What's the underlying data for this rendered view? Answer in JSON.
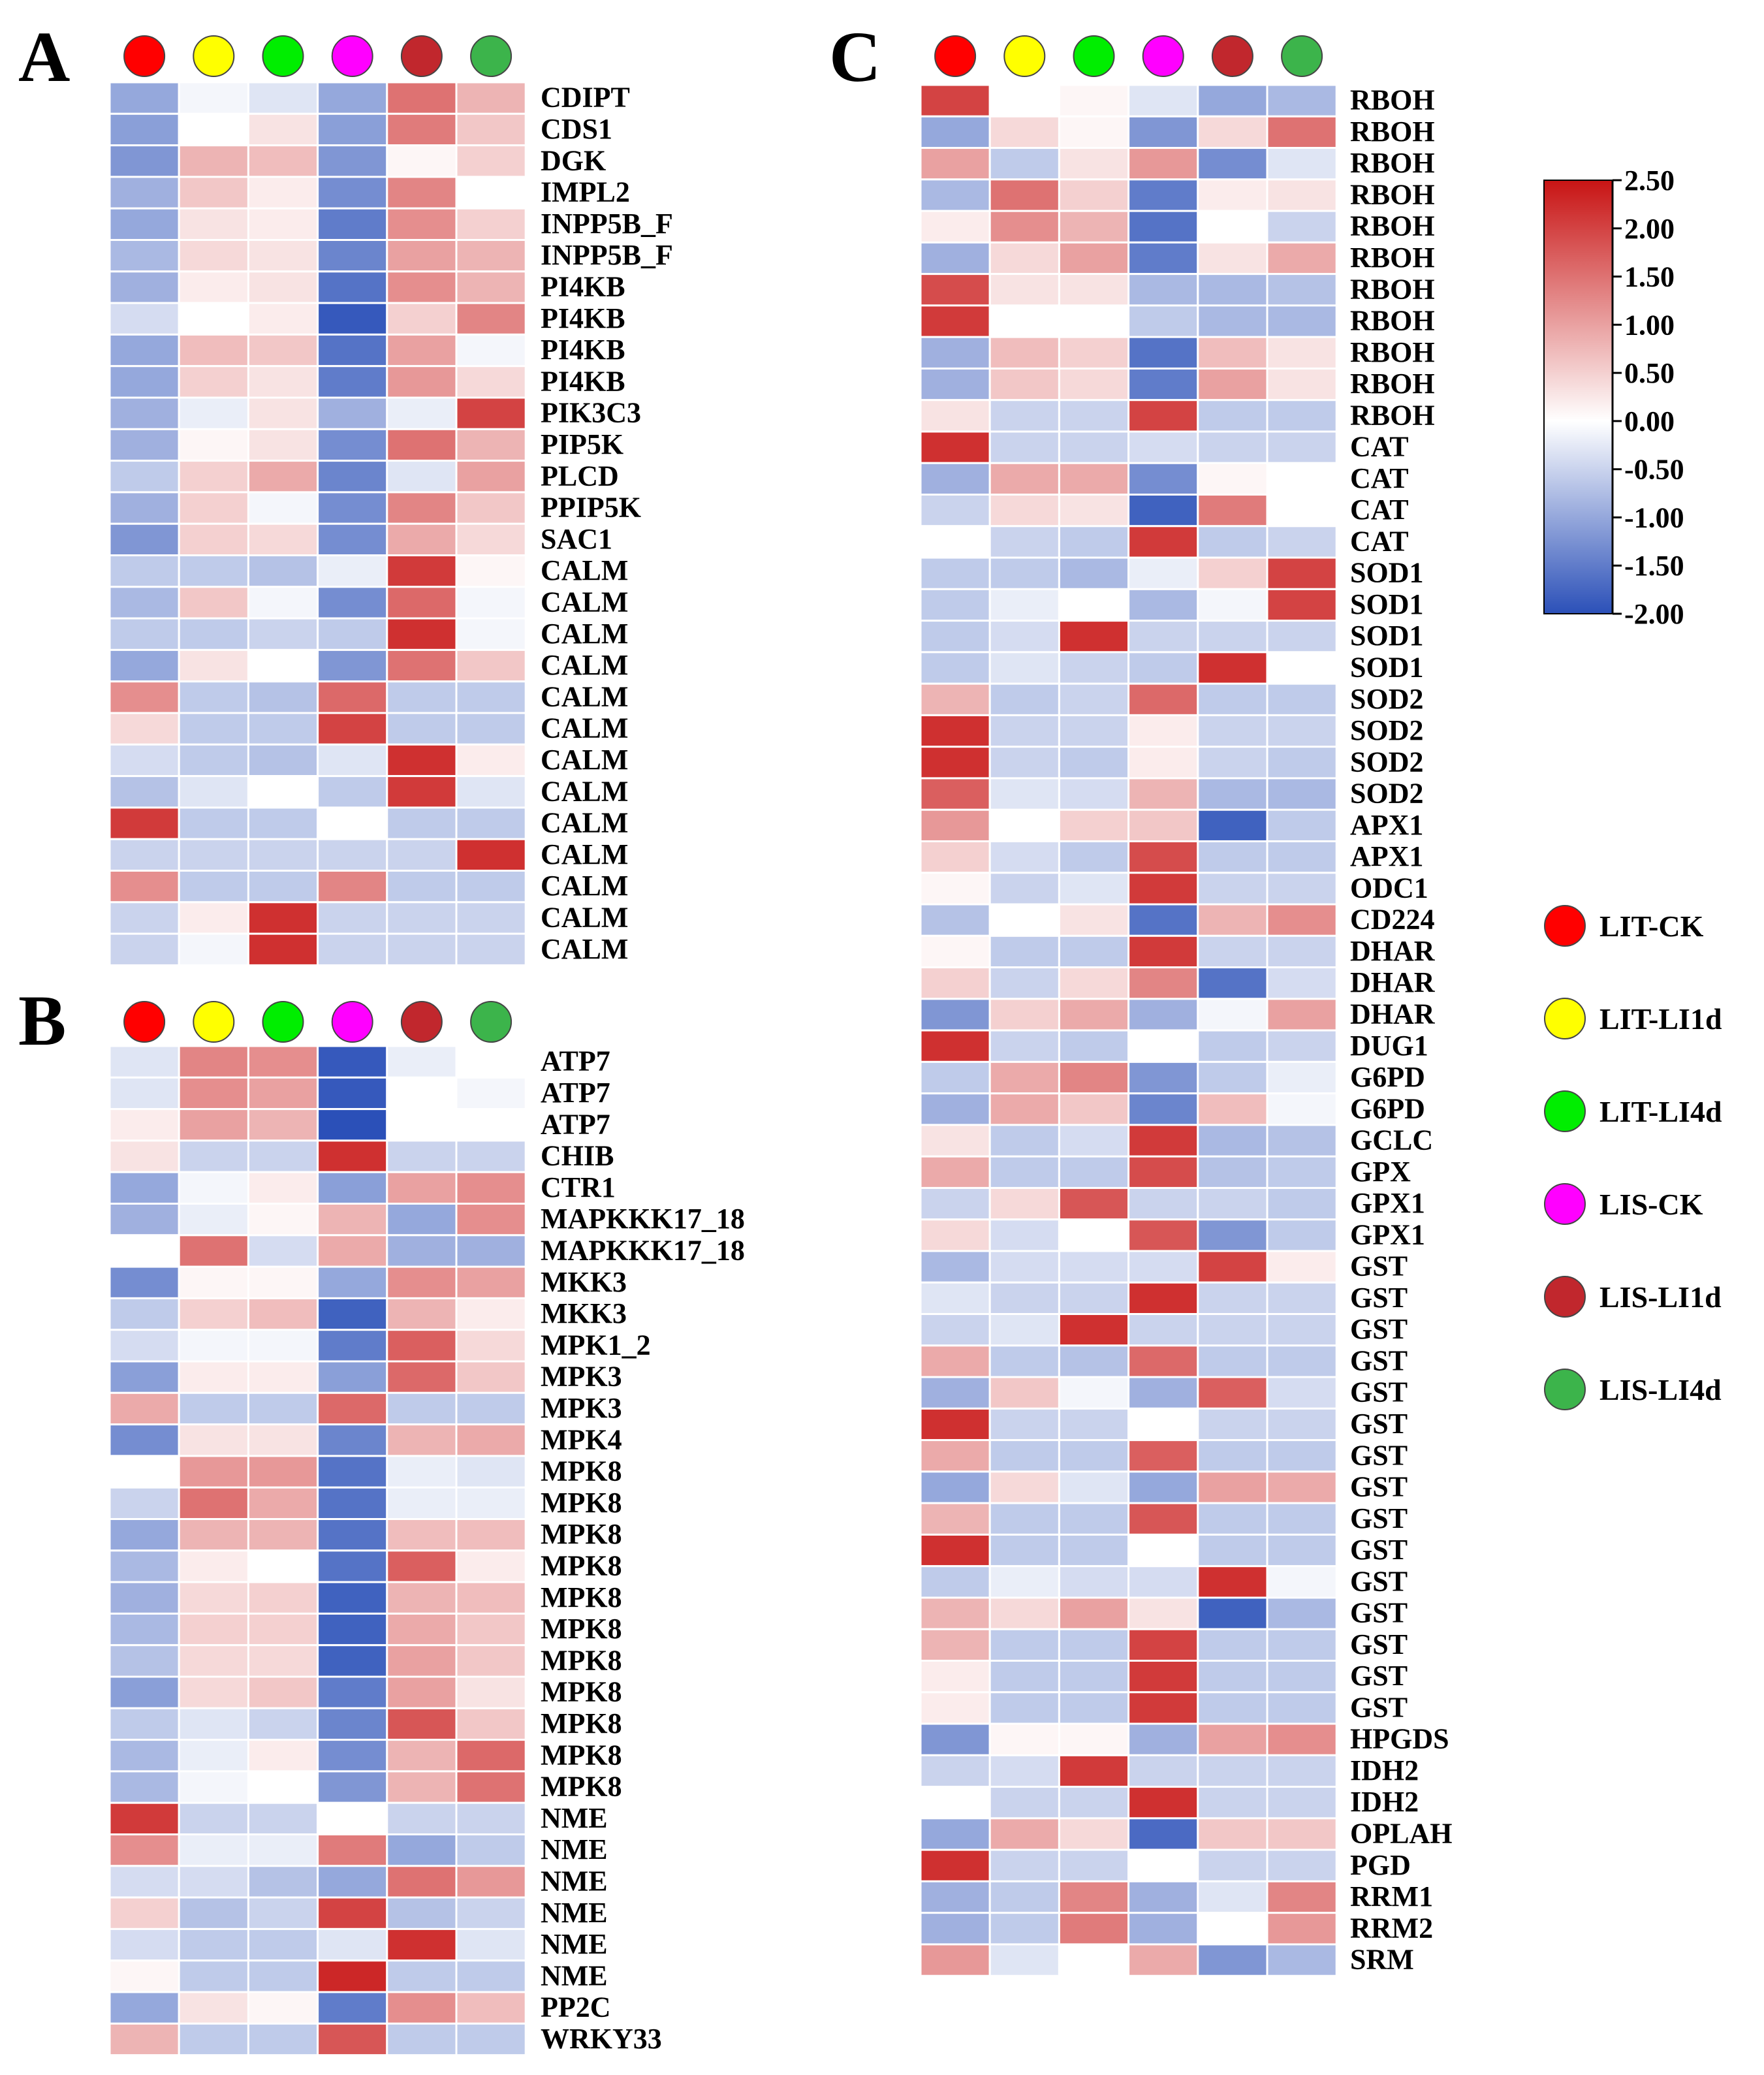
{
  "groups": [
    {
      "name": "LIT-CK",
      "color": "#ff0000"
    },
    {
      "name": "LIT-LI1d",
      "color": "#ffff00"
    },
    {
      "name": "LIT-LI4d",
      "color": "#00ee00"
    },
    {
      "name": "LIS-CK",
      "color": "#ff00ff"
    },
    {
      "name": "LIS-LI1d",
      "color": "#c1272d"
    },
    {
      "name": "LIS-LI4d",
      "color": "#3cb44b"
    }
  ],
  "colorbar": {
    "min": -2.0,
    "max": 2.5,
    "colors": {
      "low": "#2b50b8",
      "mid": "#ffffff",
      "high": "#c81414"
    },
    "tick_values": [
      2.5,
      2.0,
      1.5,
      1.0,
      0.5,
      0.0,
      -0.5,
      -1.0,
      -1.5,
      -2.0
    ],
    "tick_labels": [
      "2.50",
      "2.00",
      "1.50",
      "1.00",
      "0.50",
      "0.00",
      "-0.50",
      "-1.00",
      "-1.50",
      "-2.00"
    ]
  },
  "chart_data": [
    {
      "type": "heatmap",
      "title": "A",
      "columns": [
        "LIT-CK",
        "LIT-LI1d",
        "LIT-LI4d",
        "LIS-CK",
        "LIS-LI1d",
        "LIS-LI4d"
      ],
      "rows": [
        "CDIPT",
        "CDS1",
        "DGK",
        "IMPL2",
        "INPP5B_F",
        "INPP5B_F",
        "PI4KB",
        "PI4KB",
        "PI4KB",
        "PI4KB",
        "PIK3C3",
        "PIP5K",
        "PLCD",
        "PPIP5K",
        "SAC1",
        "CALM",
        "CALM",
        "CALM",
        "CALM",
        "CALM",
        "CALM",
        "CALM",
        "CALM",
        "CALM",
        "CALM",
        "CALM",
        "CALM",
        "CALM"
      ],
      "values": [
        [
          -1.0,
          -0.1,
          -0.3,
          -1.0,
          1.5,
          0.8
        ],
        [
          -1.1,
          0.0,
          0.3,
          -1.1,
          1.4,
          0.6
        ],
        [
          -1.2,
          0.8,
          0.7,
          -1.2,
          0.1,
          0.5
        ],
        [
          -0.9,
          0.6,
          0.2,
          -1.3,
          1.3,
          0.0
        ],
        [
          -1.0,
          0.3,
          0.2,
          -1.5,
          1.2,
          0.5
        ],
        [
          -0.8,
          0.4,
          0.3,
          -1.4,
          1.0,
          0.8
        ],
        [
          -0.9,
          0.2,
          0.3,
          -1.6,
          1.2,
          0.8
        ],
        [
          -0.4,
          0.0,
          0.2,
          -1.9,
          0.5,
          1.3
        ],
        [
          -1.0,
          0.7,
          0.6,
          -1.6,
          1.0,
          -0.1
        ],
        [
          -1.0,
          0.5,
          0.3,
          -1.5,
          1.1,
          0.4
        ],
        [
          -0.9,
          -0.2,
          0.3,
          -0.9,
          -0.2,
          2.0
        ],
        [
          -0.9,
          0.1,
          0.3,
          -1.3,
          1.5,
          0.8
        ],
        [
          -0.6,
          0.5,
          0.9,
          -1.4,
          -0.3,
          1.0
        ],
        [
          -0.9,
          0.5,
          -0.1,
          -1.3,
          1.3,
          0.6
        ],
        [
          -1.2,
          0.5,
          0.4,
          -1.3,
          0.9,
          0.4
        ],
        [
          -0.6,
          -0.6,
          -0.7,
          -0.2,
          2.1,
          0.1
        ],
        [
          -0.8,
          0.6,
          -0.1,
          -1.3,
          1.6,
          -0.1
        ],
        [
          -0.6,
          -0.6,
          -0.5,
          -0.6,
          2.2,
          -0.1
        ],
        [
          -1.0,
          0.3,
          0.0,
          -1.2,
          1.5,
          0.6
        ],
        [
          1.2,
          -0.6,
          -0.7,
          1.6,
          -0.6,
          -0.6
        ],
        [
          0.4,
          -0.6,
          -0.6,
          2.0,
          -0.6,
          -0.6
        ],
        [
          -0.4,
          -0.6,
          -0.7,
          -0.3,
          2.2,
          0.2
        ],
        [
          -0.7,
          -0.3,
          0.0,
          -0.6,
          2.1,
          -0.3
        ],
        [
          2.1,
          -0.6,
          -0.6,
          0.0,
          -0.6,
          -0.6
        ],
        [
          -0.5,
          -0.5,
          -0.5,
          -0.5,
          -0.5,
          2.2
        ],
        [
          1.2,
          -0.6,
          -0.6,
          1.3,
          -0.6,
          -0.6
        ],
        [
          -0.5,
          0.2,
          2.2,
          -0.5,
          -0.5,
          -0.5
        ],
        [
          -0.5,
          -0.1,
          2.2,
          -0.5,
          -0.5,
          -0.5
        ]
      ]
    },
    {
      "type": "heatmap",
      "title": "B",
      "columns": [
        "LIT-CK",
        "LIT-LI1d",
        "LIT-LI4d",
        "LIS-CK",
        "LIS-LI1d",
        "LIS-LI4d"
      ],
      "rows": [
        "ATP7",
        "ATP7",
        "ATP7",
        "CHIB",
        "CTR1",
        "MAPKKK17_18",
        "MAPKKK17_18",
        "MKK3",
        "MKK3",
        "MPK1_2",
        "MPK3",
        "MPK3",
        "MPK4",
        "MPK8",
        "MPK8",
        "MPK8",
        "MPK8",
        "MPK8",
        "MPK8",
        "MPK8",
        "MPK8",
        "MPK8",
        "MPK8",
        "MPK8",
        "NME",
        "NME",
        "NME",
        "NME",
        "NME",
        "NME",
        "PP2C",
        "WRKY33"
      ],
      "values": [
        [
          -0.3,
          1.3,
          1.2,
          -1.9,
          -0.2,
          0.0
        ],
        [
          -0.3,
          1.2,
          1.0,
          -1.9,
          0.0,
          -0.1
        ],
        [
          0.2,
          1.0,
          0.8,
          -2.0,
          0.0,
          0.0
        ],
        [
          0.3,
          -0.5,
          -0.5,
          2.2,
          -0.5,
          -0.5
        ],
        [
          -1.0,
          -0.1,
          0.2,
          -1.1,
          1.0,
          1.2
        ],
        [
          -0.9,
          -0.2,
          0.1,
          0.8,
          -1.0,
          1.2
        ],
        [
          0.0,
          1.5,
          -0.4,
          0.9,
          -0.9,
          -0.9
        ],
        [
          -1.3,
          0.1,
          0.1,
          -1.0,
          1.2,
          1.0
        ],
        [
          -0.6,
          0.5,
          0.7,
          -1.8,
          0.8,
          0.2
        ],
        [
          -0.4,
          -0.1,
          -0.1,
          -1.5,
          1.7,
          0.4
        ],
        [
          -1.1,
          0.2,
          0.2,
          -1.1,
          1.6,
          0.6
        ],
        [
          0.9,
          -0.6,
          -0.6,
          1.6,
          -0.6,
          -0.6
        ],
        [
          -1.3,
          0.3,
          0.3,
          -1.4,
          0.8,
          0.9
        ],
        [
          0.0,
          1.1,
          1.1,
          -1.6,
          -0.2,
          -0.3
        ],
        [
          -0.5,
          1.5,
          0.9,
          -1.6,
          -0.2,
          -0.2
        ],
        [
          -1.0,
          0.8,
          0.8,
          -1.6,
          0.7,
          0.7
        ],
        [
          -0.8,
          0.2,
          0.0,
          -1.6,
          1.7,
          0.2
        ],
        [
          -0.9,
          0.4,
          0.5,
          -1.8,
          0.8,
          0.7
        ],
        [
          -0.8,
          0.5,
          0.5,
          -1.8,
          0.9,
          0.6
        ],
        [
          -0.7,
          0.4,
          0.4,
          -1.8,
          1.0,
          0.6
        ],
        [
          -1.1,
          0.4,
          0.6,
          -1.5,
          1.0,
          0.3
        ],
        [
          -0.6,
          -0.3,
          -0.5,
          -1.4,
          1.8,
          0.6
        ],
        [
          -0.8,
          -0.2,
          0.2,
          -1.3,
          0.8,
          1.6
        ],
        [
          -0.8,
          -0.1,
          0.0,
          -1.2,
          0.8,
          1.5
        ],
        [
          2.1,
          -0.5,
          -0.5,
          0.0,
          -0.5,
          -0.5
        ],
        [
          1.2,
          -0.2,
          -0.2,
          1.4,
          -1.0,
          -0.6
        ],
        [
          -0.4,
          -0.4,
          -0.7,
          -1.0,
          1.5,
          1.1
        ],
        [
          0.5,
          -0.7,
          -0.5,
          2.0,
          -0.7,
          -0.5
        ],
        [
          -0.4,
          -0.6,
          -0.6,
          -0.3,
          2.2,
          -0.3
        ],
        [
          0.1,
          -0.6,
          -0.6,
          2.3,
          -0.6,
          -0.6
        ],
        [
          -1.0,
          0.3,
          0.1,
          -1.5,
          1.2,
          0.7
        ],
        [
          0.8,
          -0.6,
          -0.6,
          1.8,
          -0.6,
          -0.6
        ]
      ]
    },
    {
      "type": "heatmap",
      "title": "C",
      "columns": [
        "LIT-CK",
        "LIT-LI1d",
        "LIT-LI4d",
        "LIS-CK",
        "LIS-LI1d",
        "LIS-LI4d"
      ],
      "rows": [
        "RBOH",
        "RBOH",
        "RBOH",
        "RBOH",
        "RBOH",
        "RBOH",
        "RBOH",
        "RBOH",
        "RBOH",
        "RBOH",
        "RBOH",
        "CAT",
        "CAT",
        "CAT",
        "CAT",
        "SOD1",
        "SOD1",
        "SOD1",
        "SOD1",
        "SOD2",
        "SOD2",
        "SOD2",
        "SOD2",
        "APX1",
        "APX1",
        "ODC1",
        "CD224",
        "DHAR",
        "DHAR",
        "DHAR",
        "DUG1",
        "G6PD",
        "G6PD",
        "GCLC",
        "GPX",
        "GPX1",
        "GPX1",
        "GST",
        "GST",
        "GST",
        "GST",
        "GST",
        "GST",
        "GST",
        "GST",
        "GST",
        "GST",
        "GST",
        "GST",
        "GST",
        "GST",
        "GST",
        "HPGDS",
        "IDH2",
        "IDH2",
        "OPLAH",
        "PGD",
        "RRM1",
        "RRM2",
        "SRM"
      ],
      "values": [
        [
          2.0,
          0.0,
          0.1,
          -0.3,
          -1.0,
          -0.8
        ],
        [
          -1.0,
          0.4,
          0.1,
          -1.2,
          0.4,
          1.5
        ],
        [
          1.0,
          -0.6,
          0.3,
          1.1,
          -1.3,
          -0.3
        ],
        [
          -0.8,
          1.5,
          0.5,
          -1.5,
          0.2,
          0.3
        ],
        [
          0.2,
          1.2,
          0.8,
          -1.6,
          0.0,
          -0.5
        ],
        [
          -0.9,
          0.4,
          1.0,
          -1.5,
          0.3,
          0.9
        ],
        [
          1.9,
          0.3,
          0.3,
          -0.8,
          -0.8,
          -0.7
        ],
        [
          2.1,
          0.0,
          0.0,
          -0.6,
          -0.8,
          -0.8
        ],
        [
          -0.9,
          0.7,
          0.5,
          -1.6,
          0.7,
          0.3
        ],
        [
          -0.9,
          0.6,
          0.4,
          -1.5,
          1.0,
          0.3
        ],
        [
          0.3,
          -0.5,
          -0.5,
          2.0,
          -0.6,
          -0.6
        ],
        [
          2.2,
          -0.5,
          -0.5,
          -0.4,
          -0.5,
          -0.5
        ],
        [
          -0.9,
          0.9,
          0.9,
          -1.3,
          0.1,
          0.0
        ],
        [
          -0.5,
          0.4,
          0.3,
          -1.8,
          1.4,
          0.0
        ],
        [
          0.0,
          -0.5,
          -0.6,
          2.1,
          -0.6,
          -0.5
        ],
        [
          -0.6,
          -0.6,
          -0.8,
          -0.2,
          0.5,
          2.0
        ],
        [
          -0.6,
          -0.2,
          0.0,
          -0.8,
          -0.1,
          2.0
        ],
        [
          -0.6,
          -0.4,
          2.2,
          -0.5,
          -0.5,
          -0.5
        ],
        [
          -0.6,
          -0.3,
          -0.5,
          -0.6,
          2.2,
          0.0
        ],
        [
          0.8,
          -0.6,
          -0.5,
          1.6,
          -0.6,
          -0.6
        ],
        [
          2.2,
          -0.5,
          -0.5,
          0.2,
          -0.5,
          -0.5
        ],
        [
          2.2,
          -0.5,
          -0.6,
          0.2,
          -0.5,
          -0.6
        ],
        [
          1.7,
          -0.3,
          -0.4,
          0.8,
          -0.8,
          -0.8
        ],
        [
          1.1,
          0.0,
          0.5,
          0.6,
          -1.8,
          -0.6
        ],
        [
          0.5,
          -0.4,
          -0.6,
          1.9,
          -0.6,
          -0.6
        ],
        [
          0.1,
          -0.5,
          -0.3,
          2.1,
          -0.5,
          -0.5
        ],
        [
          -0.7,
          0.0,
          0.3,
          -1.6,
          0.8,
          1.2
        ],
        [
          0.1,
          -0.6,
          -0.6,
          2.1,
          -0.5,
          -0.5
        ],
        [
          0.5,
          -0.5,
          0.4,
          1.3,
          -1.6,
          -0.4
        ],
        [
          -1.2,
          0.5,
          0.9,
          -0.9,
          -0.1,
          1.0
        ],
        [
          2.2,
          -0.5,
          -0.6,
          0.0,
          -0.6,
          -0.5
        ],
        [
          -0.6,
          0.9,
          1.3,
          -1.2,
          -0.6,
          -0.2
        ],
        [
          -0.9,
          0.9,
          0.6,
          -1.4,
          0.7,
          -0.1
        ],
        [
          0.3,
          -0.6,
          -0.4,
          2.1,
          -0.8,
          -0.7
        ],
        [
          0.9,
          -0.6,
          -0.6,
          1.9,
          -0.7,
          -0.6
        ],
        [
          -0.5,
          0.4,
          1.8,
          -0.5,
          -0.5,
          -0.6
        ],
        [
          0.4,
          -0.4,
          0.0,
          1.8,
          -1.2,
          -0.6
        ],
        [
          -0.8,
          -0.4,
          -0.4,
          -0.4,
          2.0,
          0.2
        ],
        [
          -0.3,
          -0.5,
          -0.5,
          2.2,
          -0.5,
          -0.5
        ],
        [
          -0.5,
          -0.3,
          2.2,
          -0.5,
          -0.5,
          -0.5
        ],
        [
          0.9,
          -0.6,
          -0.7,
          1.6,
          -0.6,
          -0.6
        ],
        [
          -0.9,
          0.6,
          -0.1,
          -0.9,
          1.7,
          -0.4
        ],
        [
          2.2,
          -0.5,
          -0.5,
          0.0,
          -0.5,
          -0.5
        ],
        [
          0.9,
          -0.6,
          -0.6,
          1.7,
          -0.6,
          -0.6
        ],
        [
          -1.0,
          0.4,
          -0.3,
          -1.0,
          1.0,
          0.9
        ],
        [
          0.8,
          -0.6,
          -0.6,
          1.8,
          -0.6,
          -0.6
        ],
        [
          2.2,
          -0.6,
          -0.6,
          0.0,
          -0.6,
          -0.6
        ],
        [
          -0.6,
          -0.2,
          -0.4,
          -0.4,
          2.2,
          -0.1
        ],
        [
          0.8,
          0.4,
          1.0,
          0.3,
          -1.8,
          -0.8
        ],
        [
          0.8,
          -0.6,
          -0.6,
          2.0,
          -0.6,
          -0.6
        ],
        [
          0.2,
          -0.6,
          -0.6,
          2.1,
          -0.6,
          -0.6
        ],
        [
          0.2,
          -0.6,
          -0.6,
          2.1,
          -0.6,
          -0.6
        ],
        [
          -1.2,
          0.1,
          0.1,
          -0.9,
          1.0,
          1.2
        ],
        [
          -0.5,
          -0.4,
          2.1,
          -0.5,
          -0.5,
          -0.5
        ],
        [
          0.0,
          -0.5,
          -0.5,
          2.2,
          -0.5,
          -0.5
        ],
        [
          -1.0,
          0.9,
          0.4,
          -1.7,
          0.6,
          0.6
        ],
        [
          2.2,
          -0.5,
          -0.5,
          0.0,
          -0.5,
          -0.5
        ],
        [
          -0.9,
          -0.6,
          1.3,
          -0.9,
          -0.3,
          1.3
        ],
        [
          -0.9,
          -0.6,
          1.4,
          -0.9,
          0.0,
          1.1
        ],
        [
          1.1,
          -0.3,
          0.0,
          0.9,
          -1.2,
          -0.8
        ]
      ]
    }
  ]
}
